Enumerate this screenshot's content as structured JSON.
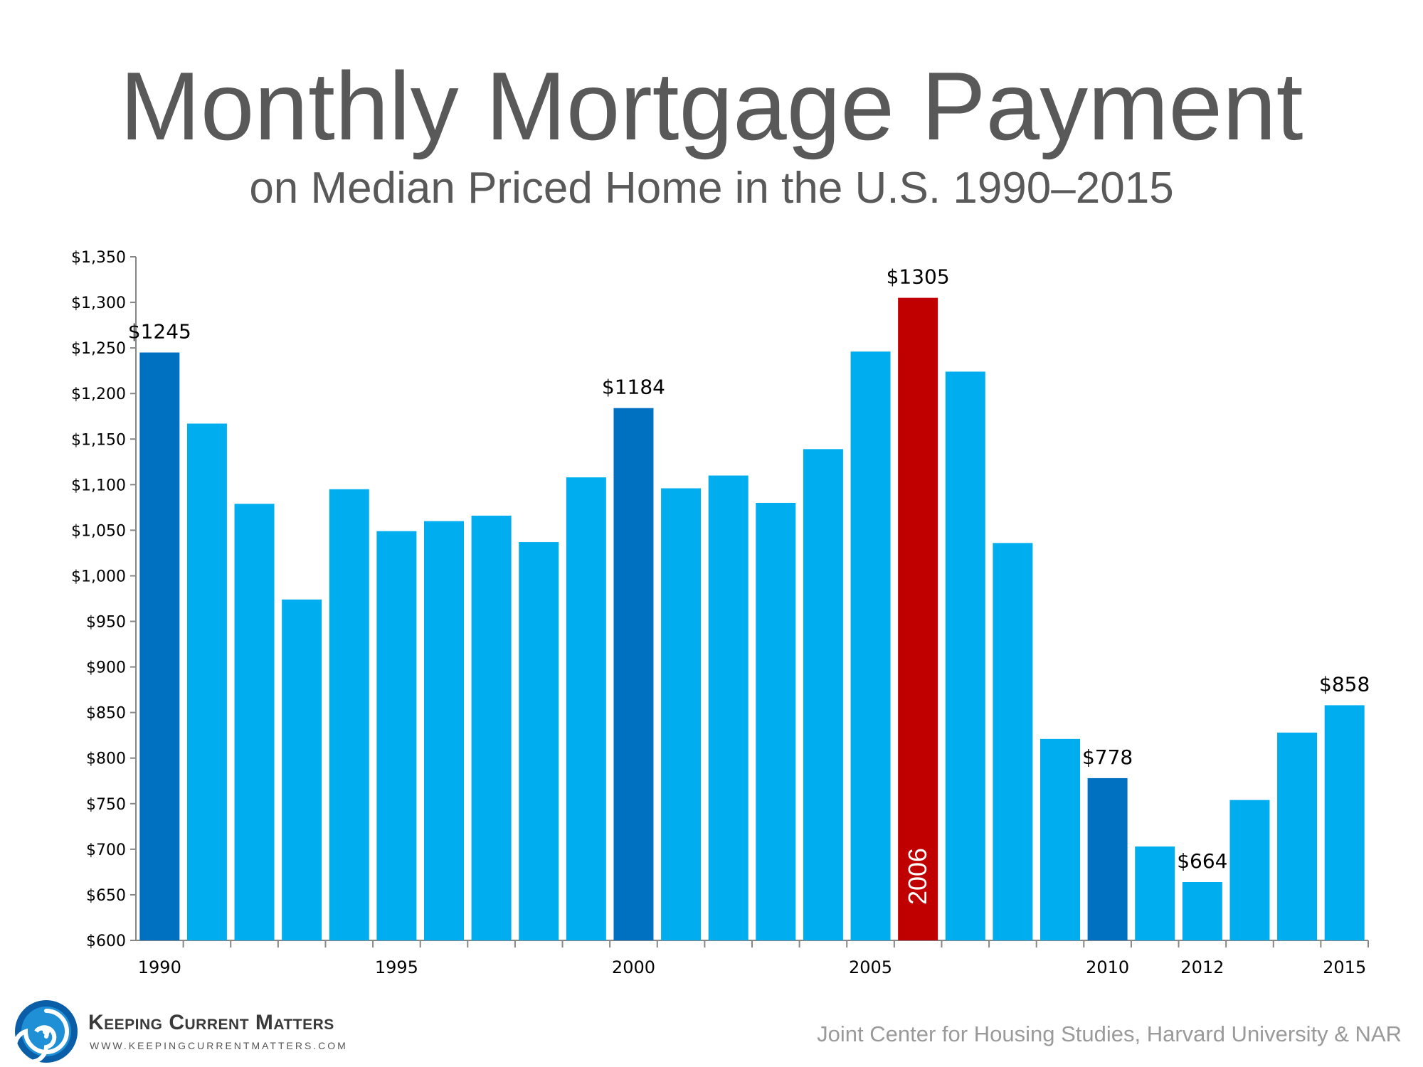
{
  "chart_data": {
    "type": "bar",
    "title": "Monthly Mortgage Payment",
    "subtitle": "on Median Priced Home in the U.S. 1990–2015",
    "xlabel": "",
    "ylabel": "",
    "ylim": [
      600,
      1350
    ],
    "y_ticks": [
      "$1,350",
      "$1,300",
      "$1,250",
      "$1,200",
      "$1,150",
      "$1,100",
      "$1,050",
      "$1,000",
      "$950",
      "$900",
      "$850",
      "$800",
      "$750",
      "$700",
      "$650",
      "$600"
    ],
    "y_tick_values": [
      1350,
      1300,
      1250,
      1200,
      1150,
      1100,
      1050,
      1000,
      950,
      900,
      850,
      800,
      750,
      700,
      650,
      600
    ],
    "categories": [
      "1990",
      "1991",
      "1992",
      "1993",
      "1994",
      "1995",
      "1996",
      "1997",
      "1998",
      "1999",
      "2000",
      "2001",
      "2002",
      "2003",
      "2004",
      "2005",
      "2006",
      "2007",
      "2008",
      "2009",
      "2010",
      "2011",
      "2012",
      "2013",
      "2014",
      "2015"
    ],
    "x_tick_labels": [
      "1990",
      "",
      "",
      "",
      "",
      "1995",
      "",
      "",
      "",
      "",
      "2000",
      "",
      "",
      "",
      "",
      "2005",
      "",
      "",
      "",
      "",
      "2010",
      "",
      "2012",
      "",
      "",
      "2015"
    ],
    "values": [
      1245,
      1167,
      1079,
      974,
      1095,
      1049,
      1060,
      1066,
      1037,
      1108,
      1184,
      1096,
      1110,
      1080,
      1139,
      1246,
      1305,
      1224,
      1036,
      821,
      778,
      703,
      664,
      754,
      828,
      858
    ],
    "highlight": [
      "dark",
      "light",
      "light",
      "light",
      "light",
      "light",
      "light",
      "light",
      "light",
      "light",
      "dark",
      "light",
      "light",
      "light",
      "light",
      "light",
      "red",
      "light",
      "light",
      "light",
      "dark",
      "light",
      "dark-label",
      "light",
      "light",
      "light"
    ],
    "data_labels": [
      "$1245",
      "",
      "",
      "",
      "",
      "",
      "",
      "",
      "",
      "",
      "$1184",
      "",
      "",
      "",
      "",
      "",
      "$1305",
      "",
      "",
      "",
      "$778",
      "",
      "$664",
      "",
      "",
      "$858"
    ],
    "inside_labels": [
      "",
      "",
      "",
      "",
      "",
      "",
      "",
      "",
      "",
      "",
      "",
      "",
      "",
      "",
      "",
      "",
      "2006",
      "",
      "",
      "",
      "",
      "",
      "",
      "",
      "",
      ""
    ],
    "grid": false,
    "legend": "none"
  },
  "colors": {
    "bar_light": "#00aeef",
    "bar_dark": "#0070c0",
    "bar_red": "#c00000",
    "axis": "#868686",
    "text": "#000000",
    "title": "#595959",
    "source": "#9a9a9a"
  },
  "footer": {
    "logo_icon": "swirl-logo-icon",
    "brand_name": "Keeping Current Matters",
    "brand_url": "WWW.KEEPINGCURRENTMATTERS.COM",
    "source": "Joint Center for Housing Studies, Harvard University & NAR"
  }
}
